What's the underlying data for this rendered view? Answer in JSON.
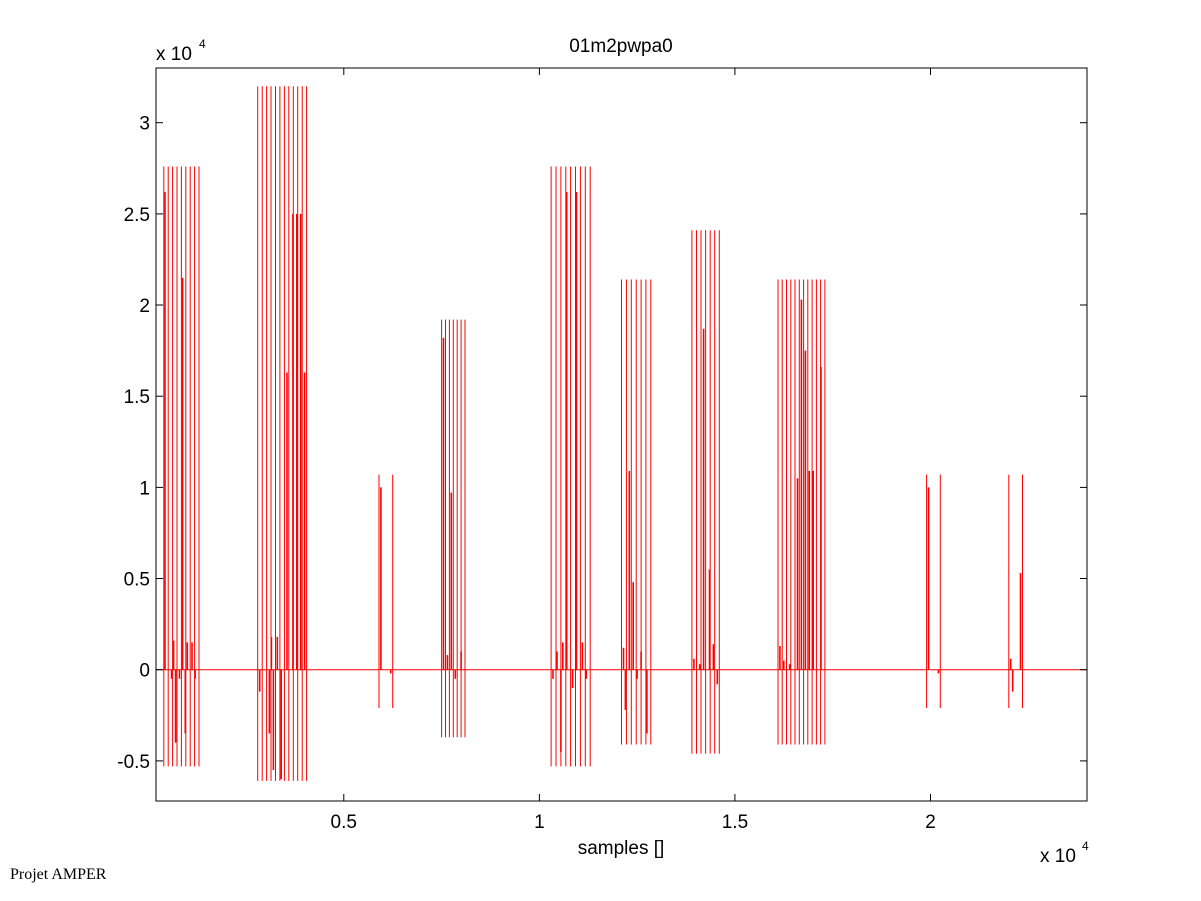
{
  "chart_data": {
    "type": "line",
    "title": "01m2pwpa0",
    "xlabel": "samples []",
    "ylabel": "",
    "x_multiplier": "x 10",
    "x_multiplier_exp": "4",
    "y_multiplier": "x 10",
    "y_multiplier_exp": "4",
    "xlim": [
      0.02,
      2.4
    ],
    "ylim": [
      -0.72,
      3.3
    ],
    "xticks": [
      0.5,
      1,
      1.5,
      2
    ],
    "xtick_labels": [
      "0.5",
      "1",
      "1.5",
      "2"
    ],
    "yticks": [
      -0.5,
      0,
      0.5,
      1,
      1.5,
      2,
      2.5,
      3
    ],
    "ytick_labels": [
      "-0.5",
      "0",
      "0.5",
      "1",
      "1.5",
      "2",
      "2.5",
      "3"
    ],
    "grid": false,
    "line_color": "#ff0000",
    "baseline": 0,
    "series": [
      {
        "segments": [
          {
            "x": [
              0.04,
              0.13
            ],
            "min": -0.53,
            "max": 2.76,
            "count": 9,
            "inner": [
              [
                0.043,
                2.62
              ],
              [
                0.06,
                -0.05
              ],
              [
                0.065,
                0.16
              ],
              [
                0.07,
                -0.4
              ],
              [
                0.08,
                -0.05
              ],
              [
                0.088,
                2.15
              ],
              [
                0.095,
                -0.35
              ],
              [
                0.1,
                0.15
              ],
              [
                0.112,
                0.15
              ],
              [
                0.12,
                -0.05
              ]
            ]
          },
          {
            "x": [
              0.28,
              0.405
            ],
            "min": -0.61,
            "max": 3.2,
            "count": 12,
            "inner": [
              [
                0.285,
                -0.12
              ],
              [
                0.31,
                -0.35
              ],
              [
                0.315,
                0.18
              ],
              [
                0.32,
                -0.55
              ],
              [
                0.33,
                0.18
              ],
              [
                0.34,
                -0.6
              ],
              [
                0.355,
                1.63
              ],
              [
                0.37,
                2.5
              ],
              [
                0.38,
                2.5
              ],
              [
                0.39,
                2.5
              ],
              [
                0.4,
                1.63
              ]
            ]
          },
          {
            "x": [
              0.59,
              0.625
            ],
            "min": -0.21,
            "max": 1.07,
            "count": 2,
            "inner": [
              [
                0.595,
                1.0
              ],
              [
                0.62,
                -0.02
              ]
            ]
          },
          {
            "x": [
              0.75,
              0.81
            ],
            "min": -0.37,
            "max": 1.92,
            "count": 7,
            "inner": [
              [
                0.755,
                1.82
              ],
              [
                0.765,
                0.08
              ],
              [
                0.775,
                0.97
              ],
              [
                0.785,
                -0.05
              ],
              [
                0.8,
                0.1
              ]
            ]
          },
          {
            "x": [
              1.03,
              1.13
            ],
            "min": -0.53,
            "max": 2.76,
            "count": 9,
            "inner": [
              [
                1.035,
                -0.05
              ],
              [
                1.045,
                0.1
              ],
              [
                1.055,
                -0.45
              ],
              [
                1.06,
                0.15
              ],
              [
                1.07,
                2.62
              ],
              [
                1.085,
                -0.1
              ],
              [
                1.095,
                2.62
              ],
              [
                1.11,
                0.15
              ],
              [
                1.12,
                -0.05
              ]
            ]
          },
          {
            "x": [
              1.21,
              1.285
            ],
            "min": -0.41,
            "max": 2.14,
            "count": 7,
            "inner": [
              [
                1.215,
                0.12
              ],
              [
                1.22,
                -0.22
              ],
              [
                1.23,
                1.09
              ],
              [
                1.24,
                0.48
              ],
              [
                1.25,
                -0.05
              ],
              [
                1.26,
                0.1
              ],
              [
                1.275,
                -0.35
              ]
            ]
          },
          {
            "x": [
              1.39,
              1.46
            ],
            "min": -0.46,
            "max": 2.41,
            "count": 7,
            "inner": [
              [
                1.395,
                0.06
              ],
              [
                1.41,
                0.03
              ],
              [
                1.42,
                1.87
              ],
              [
                1.435,
                0.55
              ],
              [
                1.445,
                0.14
              ],
              [
                1.455,
                -0.08
              ]
            ]
          },
          {
            "x": [
              1.61,
              1.73
            ],
            "min": -0.41,
            "max": 2.14,
            "count": 12,
            "inner": [
              [
                1.615,
                0.13
              ],
              [
                1.625,
                0.05
              ],
              [
                1.64,
                0.03
              ],
              [
                1.66,
                1.05
              ],
              [
                1.67,
                2.03
              ],
              [
                1.68,
                1.75
              ],
              [
                1.69,
                1.09
              ],
              [
                1.7,
                1.09
              ],
              [
                1.72,
                1.66
              ]
            ]
          },
          {
            "x": [
              1.99,
              2.025
            ],
            "min": -0.21,
            "max": 1.07,
            "count": 2,
            "inner": [
              [
                1.995,
                1.0
              ],
              [
                2.02,
                -0.02
              ]
            ]
          },
          {
            "x": [
              2.2,
              2.235
            ],
            "min": -0.21,
            "max": 1.07,
            "count": 2,
            "inner": [
              [
                2.205,
                0.06
              ],
              [
                2.21,
                -0.12
              ],
              [
                2.23,
                0.53
              ]
            ]
          }
        ]
      }
    ]
  },
  "footer": {
    "text": "Projet AMPER"
  }
}
